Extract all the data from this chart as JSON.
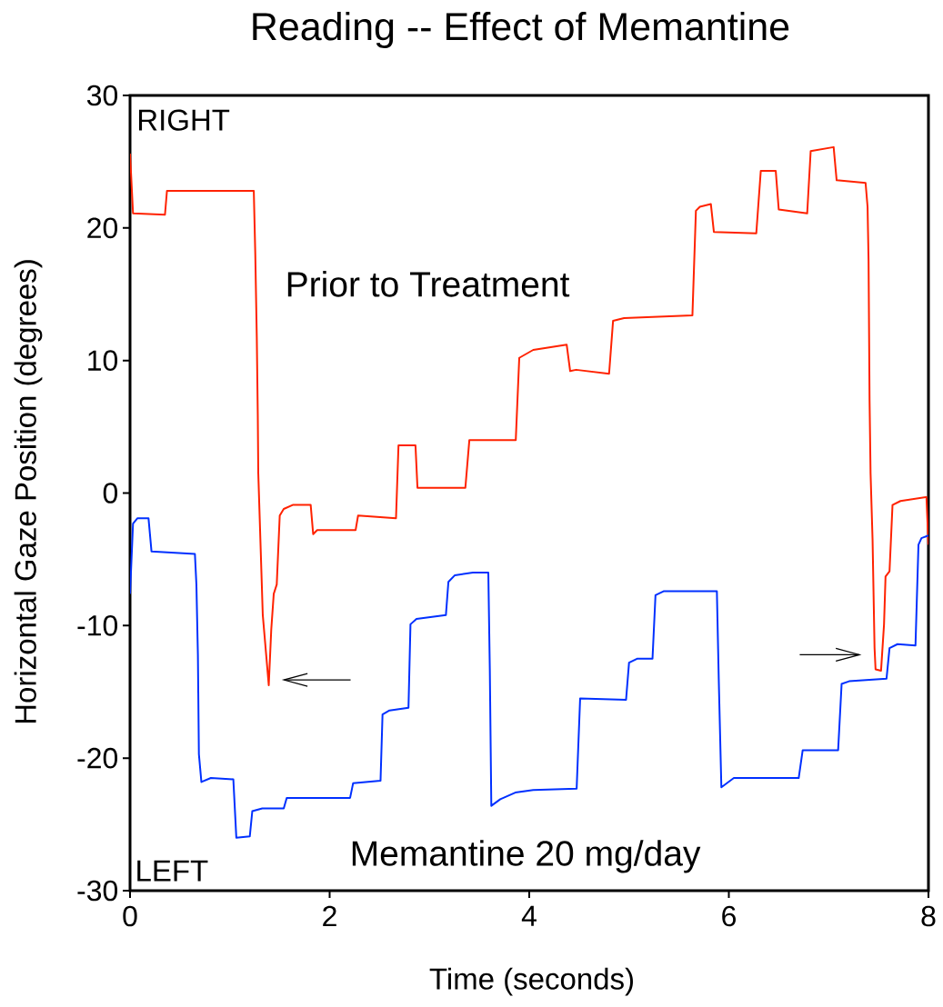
{
  "chart_data": {
    "type": "line",
    "title": "Reading -- Effect of Memantine",
    "xlabel": "Time (seconds)",
    "ylabel": "Horizontal Gaze Position (degrees)",
    "annotations": [
      "RIGHT",
      "LEFT"
    ],
    "xlim": [
      0,
      8
    ],
    "ylim": [
      -30,
      30
    ],
    "xticks": [
      0,
      2,
      4,
      6,
      8
    ],
    "yticks": [
      -30,
      -20,
      -10,
      0,
      10,
      20,
      30
    ],
    "grid": false,
    "legend": false,
    "marker": "none",
    "line_style": "solid",
    "series": [
      {
        "name": "Prior to Treatment",
        "color": "#ff2200",
        "x": [
          0.0,
          0.03,
          0.35,
          0.37,
          1.24,
          1.255,
          1.27,
          1.28,
          1.285,
          1.33,
          1.39,
          1.415,
          1.44,
          1.47,
          1.5,
          1.54,
          1.63,
          1.81,
          1.835,
          1.875,
          2.26,
          2.285,
          2.665,
          2.69,
          2.86,
          2.88,
          3.36,
          3.4,
          3.865,
          3.9,
          4.04,
          4.375,
          4.41,
          4.47,
          4.8,
          4.84,
          4.95,
          5.635,
          5.67,
          5.71,
          5.82,
          5.85,
          6.275,
          6.32,
          6.47,
          6.5,
          6.785,
          6.82,
          7.05,
          7.08,
          7.37,
          7.39,
          7.4,
          7.41,
          7.42,
          7.44,
          7.46,
          7.47,
          7.525,
          7.555,
          7.57,
          7.61,
          7.64,
          7.72,
          7.98,
          8.0
        ],
        "values": [
          25.6,
          21.1,
          21.0,
          22.8,
          22.8,
          18.0,
          11.8,
          5.9,
          1.5,
          -9.2,
          -14.5,
          -10.3,
          -7.6,
          -6.9,
          -1.7,
          -1.2,
          -0.9,
          -0.9,
          -3.1,
          -2.8,
          -2.8,
          -1.7,
          -1.9,
          3.6,
          3.6,
          0.4,
          0.4,
          4.0,
          4.0,
          10.2,
          10.8,
          11.2,
          9.2,
          9.3,
          9.0,
          13.0,
          13.2,
          13.4,
          21.3,
          21.6,
          21.8,
          19.7,
          19.6,
          24.3,
          24.3,
          21.4,
          21.1,
          25.8,
          26.1,
          23.6,
          23.4,
          21.6,
          17.5,
          7.0,
          1.5,
          -3.5,
          -11.7,
          -13.3,
          -13.4,
          -9.9,
          -6.3,
          -5.9,
          -0.9,
          -0.6,
          -0.3,
          -3.9
        ]
      },
      {
        "name": "Memantine 20 mg/day",
        "color": "#0030ff",
        "x": [
          0.0,
          0.03,
          0.075,
          0.185,
          0.215,
          0.65,
          0.665,
          0.68,
          0.69,
          0.715,
          0.81,
          1.035,
          1.065,
          1.2,
          1.225,
          1.325,
          1.54,
          1.57,
          2.205,
          2.235,
          2.51,
          2.53,
          2.6,
          2.79,
          2.81,
          2.87,
          3.165,
          3.19,
          3.255,
          3.435,
          3.59,
          3.605,
          3.62,
          3.71,
          3.86,
          4.04,
          4.475,
          4.51,
          4.97,
          5.0,
          5.08,
          5.235,
          5.265,
          5.35,
          5.88,
          5.9,
          5.925,
          6.05,
          6.7,
          6.74,
          7.095,
          7.13,
          7.205,
          7.58,
          7.61,
          7.69,
          7.87,
          7.9,
          7.93,
          8.0
        ],
        "values": [
          -7.6,
          -2.3,
          -1.9,
          -1.9,
          -4.4,
          -4.6,
          -6.9,
          -12.2,
          -19.7,
          -21.8,
          -21.5,
          -21.6,
          -26.0,
          -25.9,
          -24.0,
          -23.8,
          -23.8,
          -23.0,
          -23.0,
          -21.9,
          -21.7,
          -16.7,
          -16.4,
          -16.2,
          -9.9,
          -9.5,
          -9.2,
          -6.7,
          -6.2,
          -6.0,
          -6.0,
          -13.3,
          -23.6,
          -23.1,
          -22.6,
          -22.4,
          -22.3,
          -15.5,
          -15.6,
          -12.8,
          -12.5,
          -12.5,
          -7.7,
          -7.4,
          -7.4,
          -14.4,
          -22.2,
          -21.5,
          -21.5,
          -19.4,
          -19.4,
          -14.4,
          -14.2,
          -14.0,
          -11.7,
          -11.4,
          -11.5,
          -3.9,
          -3.4,
          -3.2
        ]
      }
    ]
  }
}
